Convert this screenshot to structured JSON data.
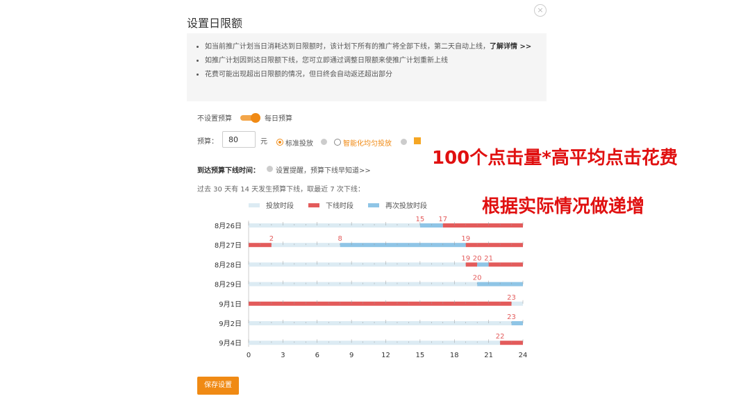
{
  "dialog": {
    "title": "设置日限额",
    "close_icon": "close-icon",
    "notices": [
      "如当前推广计划当日消耗达到日限额时，该计划下所有的推广将全部下线，第二天自动上线，",
      "如推广计划因到达日限额下线，您可立即通过调整日限额来使推广计划重新上线",
      "花费可能出现超出日限额的情况，但日终会自动返还超出部分"
    ],
    "notice_link": "了解详情 >>",
    "toggle_left": "不设置预算",
    "toggle_right": "每日预算",
    "toggle_on": true,
    "budget_label": "预算：",
    "budget_value": "80",
    "budget_unit": "元",
    "radio_standard": "标准投放",
    "radio_smart": "智能化均匀投放",
    "selected": "标准投放",
    "offline_label": "到达预算下线时间：",
    "reminder_text": "设置提醒，预算下线早知道>>",
    "history_text": "过去 30 天有 14 天发生预算下线，取最近 7 次下线：",
    "save_label": "保存设置",
    "accent": "#f08a14"
  },
  "annotations": [
    "100个点击量*高平均点击花费",
    "根据实际情况做递增"
  ],
  "chart_data": {
    "type": "bar",
    "orientation": "horizontal-timeline",
    "legend": [
      "投放时段",
      "下线时段",
      "再次投放时段"
    ],
    "legend_placement": "top",
    "colors": {
      "投放时段": "#dcebf3",
      "下线时段": "#e35b5b",
      "再次投放时段": "#8fc5e6"
    },
    "xlim": [
      0,
      24
    ],
    "xticks": [
      0,
      3,
      6,
      9,
      12,
      15,
      18,
      21,
      24
    ],
    "categories": [
      "8月26日",
      "8月27日",
      "8月28日",
      "8月29日",
      "9月1日",
      "9月2日",
      "9月4日"
    ],
    "rows": [
      {
        "segments": [
          [
            0,
            15,
            "投放时段"
          ],
          [
            15,
            17,
            "再次投放时段"
          ],
          [
            17,
            24,
            "下线时段"
          ]
        ],
        "labels": [
          15,
          17
        ]
      },
      {
        "segments": [
          [
            0,
            2,
            "下线时段"
          ],
          [
            2,
            8,
            "投放时段"
          ],
          [
            8,
            19,
            "再次投放时段"
          ],
          [
            19,
            24,
            "下线时段"
          ]
        ],
        "labels": [
          2,
          8,
          19
        ]
      },
      {
        "segments": [
          [
            0,
            19,
            "投放时段"
          ],
          [
            19,
            20,
            "下线时段"
          ],
          [
            20,
            21,
            "再次投放时段"
          ],
          [
            21,
            24,
            "下线时段"
          ]
        ],
        "labels": [
          19,
          20,
          21
        ]
      },
      {
        "segments": [
          [
            0,
            20,
            "投放时段"
          ],
          [
            20,
            24,
            "再次投放时段"
          ]
        ],
        "labels": [
          20
        ]
      },
      {
        "segments": [
          [
            0,
            23,
            "下线时段"
          ],
          [
            23,
            24,
            "投放时段"
          ]
        ],
        "labels": [
          23
        ]
      },
      {
        "segments": [
          [
            0,
            23,
            "投放时段"
          ],
          [
            23,
            24,
            "再次投放时段"
          ]
        ],
        "labels": [
          23
        ]
      },
      {
        "segments": [
          [
            0,
            22,
            "投放时段"
          ],
          [
            22,
            24,
            "下线时段"
          ]
        ],
        "labels": [
          22
        ]
      }
    ]
  }
}
